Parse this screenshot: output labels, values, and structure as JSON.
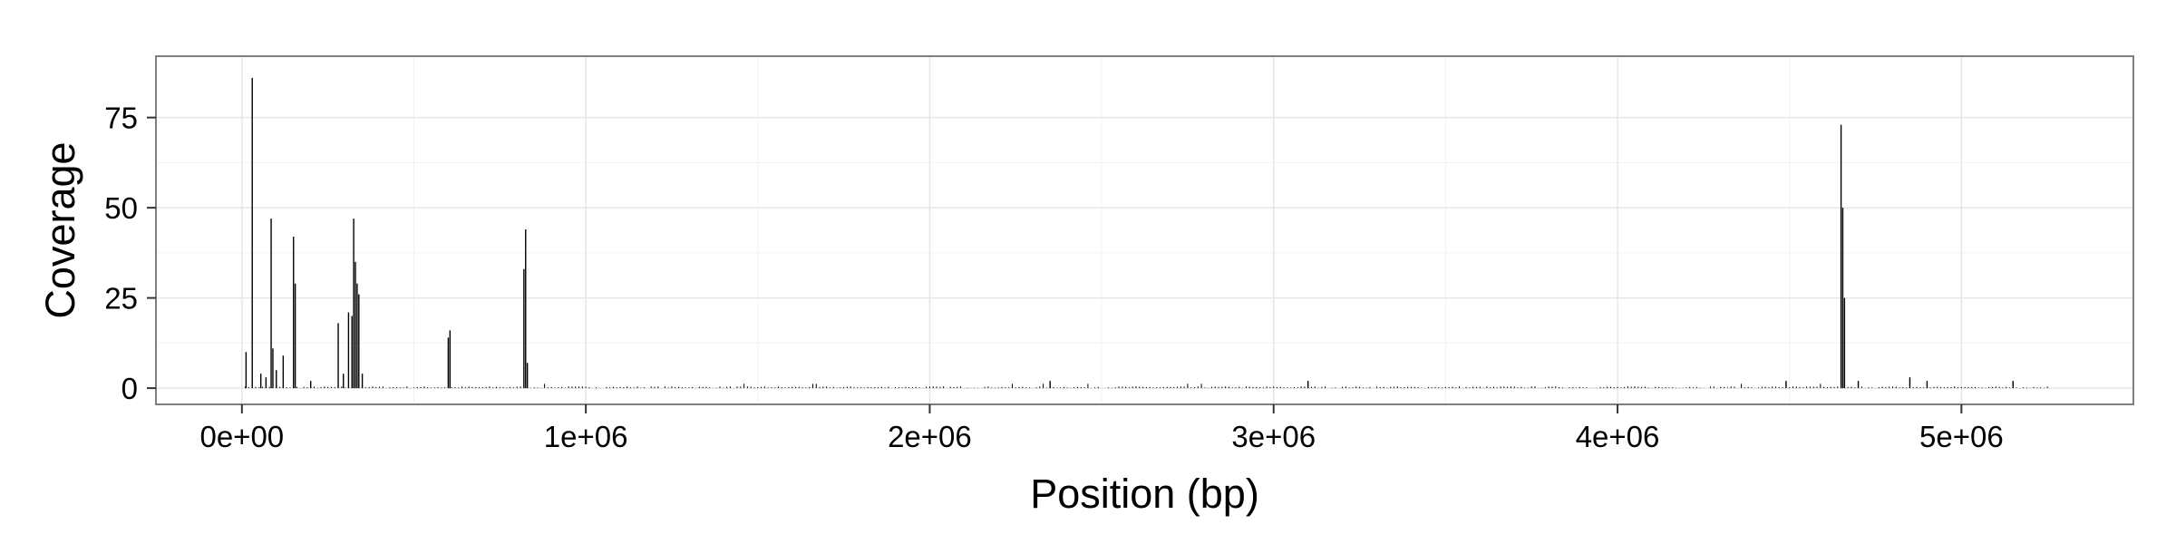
{
  "chart_data": {
    "type": "bar",
    "xlabel": "Position (bp)",
    "ylabel": "Coverage",
    "xlim": [
      -250000,
      5500000
    ],
    "ylim": [
      -4.5,
      92
    ],
    "x_ticks": [
      0,
      1000000,
      2000000,
      3000000,
      4000000,
      5000000
    ],
    "x_tick_labels": [
      "0e+00",
      "1e+06",
      "2e+06",
      "3e+06",
      "4e+06",
      "5e+06"
    ],
    "y_ticks": [
      0,
      25,
      50,
      75
    ],
    "y_tick_labels": [
      "0",
      "25",
      "50",
      "75"
    ],
    "grid": true,
    "background": "#ffffff",
    "colors": {
      "bar": "#000000",
      "grid_major": "#e6e6e6",
      "grid_minor": "#f2f2f2",
      "panel_border": "#7f7f7f"
    },
    "peaks": [
      {
        "x": 12000,
        "y": 10
      },
      {
        "x": 30000,
        "y": 86
      },
      {
        "x": 55000,
        "y": 4
      },
      {
        "x": 70000,
        "y": 3
      },
      {
        "x": 85000,
        "y": 47
      },
      {
        "x": 90000,
        "y": 11
      },
      {
        "x": 100000,
        "y": 5
      },
      {
        "x": 120000,
        "y": 9
      },
      {
        "x": 150000,
        "y": 42
      },
      {
        "x": 155000,
        "y": 29
      },
      {
        "x": 200000,
        "y": 2
      },
      {
        "x": 280000,
        "y": 18
      },
      {
        "x": 295000,
        "y": 4
      },
      {
        "x": 310000,
        "y": 21
      },
      {
        "x": 320000,
        "y": 20
      },
      {
        "x": 325000,
        "y": 47
      },
      {
        "x": 330000,
        "y": 35
      },
      {
        "x": 335000,
        "y": 29
      },
      {
        "x": 340000,
        "y": 26
      },
      {
        "x": 350000,
        "y": 4
      },
      {
        "x": 600000,
        "y": 14
      },
      {
        "x": 605000,
        "y": 16
      },
      {
        "x": 820000,
        "y": 33
      },
      {
        "x": 825000,
        "y": 44
      },
      {
        "x": 830000,
        "y": 7
      },
      {
        "x": 2350000,
        "y": 2
      },
      {
        "x": 3100000,
        "y": 2
      },
      {
        "x": 4490000,
        "y": 2
      },
      {
        "x": 4650000,
        "y": 73
      },
      {
        "x": 4655000,
        "y": 50
      },
      {
        "x": 4660000,
        "y": 25
      },
      {
        "x": 4700000,
        "y": 2
      },
      {
        "x": 4850000,
        "y": 3
      },
      {
        "x": 4900000,
        "y": 2
      },
      {
        "x": 5150000,
        "y": 2
      }
    ],
    "baseline": {
      "x_start": 0,
      "x_end": 5250000,
      "step": 10000,
      "typical_y": 0.5,
      "max_y": 1.2
    }
  }
}
